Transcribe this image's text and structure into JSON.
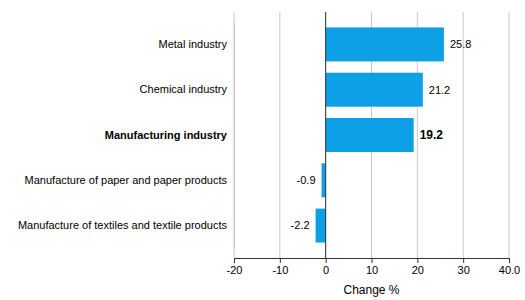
{
  "chart_data": {
    "type": "bar",
    "orientation": "horizontal",
    "categories": [
      "Metal industry",
      "Chemical industry",
      "Manufacturing industry",
      "Manufacture of paper and paper products",
      "Manufacture of textiles and textile products"
    ],
    "values": [
      25.8,
      21.2,
      19.2,
      -0.9,
      -2.2
    ],
    "color": "#0ea0e6",
    "xlabel": "Change %",
    "xlim": [
      -20,
      40
    ],
    "xticks": [
      -20,
      -10,
      0,
      10,
      20,
      30,
      {
        "value": 40,
        "label": "40.0"
      }
    ],
    "grid": true,
    "data_labels": true
  }
}
